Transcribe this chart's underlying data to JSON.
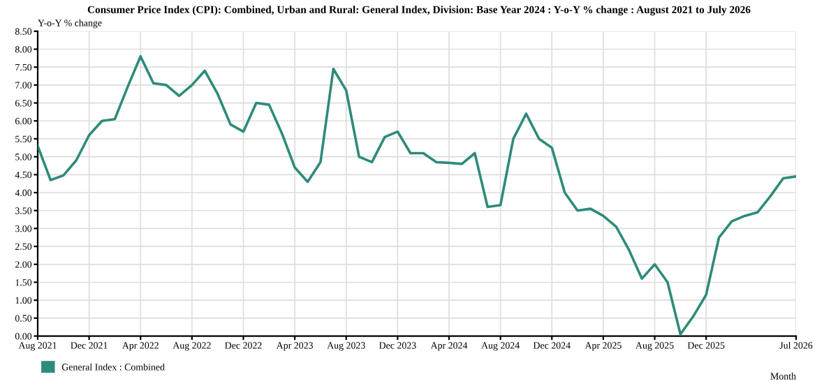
{
  "chart_data": {
    "type": "line",
    "title": "Consumer Price Index (CPI): Combined, Urban and Rural: General Index, Division: Base Year 2024 : Y-o-Y % change : August 2021 to July 2026",
    "ylabel": "Y-o-Y % change",
    "xlabel": "Month",
    "categories": [
      "Aug 2021",
      null,
      null,
      null,
      "Dec 2021",
      null,
      null,
      null,
      "Apr 2022",
      null,
      null,
      null,
      "Aug 2022",
      null,
      null,
      null,
      "Dec 2022",
      null,
      null,
      null,
      "Apr 2023",
      null,
      null,
      null,
      "Aug 2023",
      null,
      null,
      null,
      "Dec 2023",
      null,
      null,
      null,
      "Apr 2024",
      null,
      null,
      null,
      "Aug 2024",
      null,
      null,
      null,
      "Dec 2024",
      null,
      null,
      null,
      "Apr 2025",
      null,
      null,
      null,
      "Aug 2025",
      null,
      null,
      null,
      "Dec 2025",
      null,
      null,
      null,
      null,
      null,
      null,
      "Jul 2026"
    ],
    "series": [
      {
        "name": "General Index : Combined",
        "color": "#2e8b7a",
        "values": [
          5.3,
          4.35,
          4.48,
          4.9,
          5.6,
          6.0,
          6.05,
          6.95,
          7.8,
          7.05,
          7.0,
          6.7,
          7.0,
          7.4,
          6.75,
          5.9,
          5.7,
          6.5,
          6.45,
          5.65,
          4.7,
          4.3,
          4.85,
          7.45,
          6.85,
          5.0,
          4.85,
          5.55,
          5.7,
          5.1,
          5.1,
          4.85,
          4.83,
          4.8,
          5.1,
          3.6,
          3.65,
          5.5,
          6.2,
          5.5,
          5.25,
          4.0,
          3.5,
          3.55,
          3.35,
          3.05,
          2.4,
          1.6,
          2.0,
          1.5,
          0.05,
          0.55,
          1.15,
          2.75,
          3.2,
          3.35,
          3.45,
          3.9,
          4.4,
          4.45
        ]
      }
    ],
    "ylim": [
      0,
      8.5
    ],
    "yticks": [
      {
        "value": 0,
        "label": "0.00"
      },
      {
        "value": 0.5,
        "label": "0.50"
      },
      {
        "value": 1,
        "label": "1.00"
      },
      {
        "value": 1.5,
        "label": "1.50"
      },
      {
        "value": 2,
        "label": "2.00"
      },
      {
        "value": 2.5,
        "label": "2.50"
      },
      {
        "value": 3,
        "label": "3.00"
      },
      {
        "value": 3.5,
        "label": "3.50"
      },
      {
        "value": 4,
        "label": "4.00"
      },
      {
        "value": 4.5,
        "label": "4.50"
      },
      {
        "value": 5,
        "label": "5.00"
      },
      {
        "value": 5.5,
        "label": "5.50"
      },
      {
        "value": 6,
        "label": "6.00"
      },
      {
        "value": 6.5,
        "label": "6.50"
      },
      {
        "value": 7,
        "label": "7.00"
      },
      {
        "value": 7.5,
        "label": "7.50"
      },
      {
        "value": 8,
        "label": "8.00"
      },
      {
        "value": 8.5,
        "label": "8.50"
      }
    ],
    "grid": true,
    "legend": "bottom left",
    "marker": "none",
    "line_style": "solid"
  }
}
